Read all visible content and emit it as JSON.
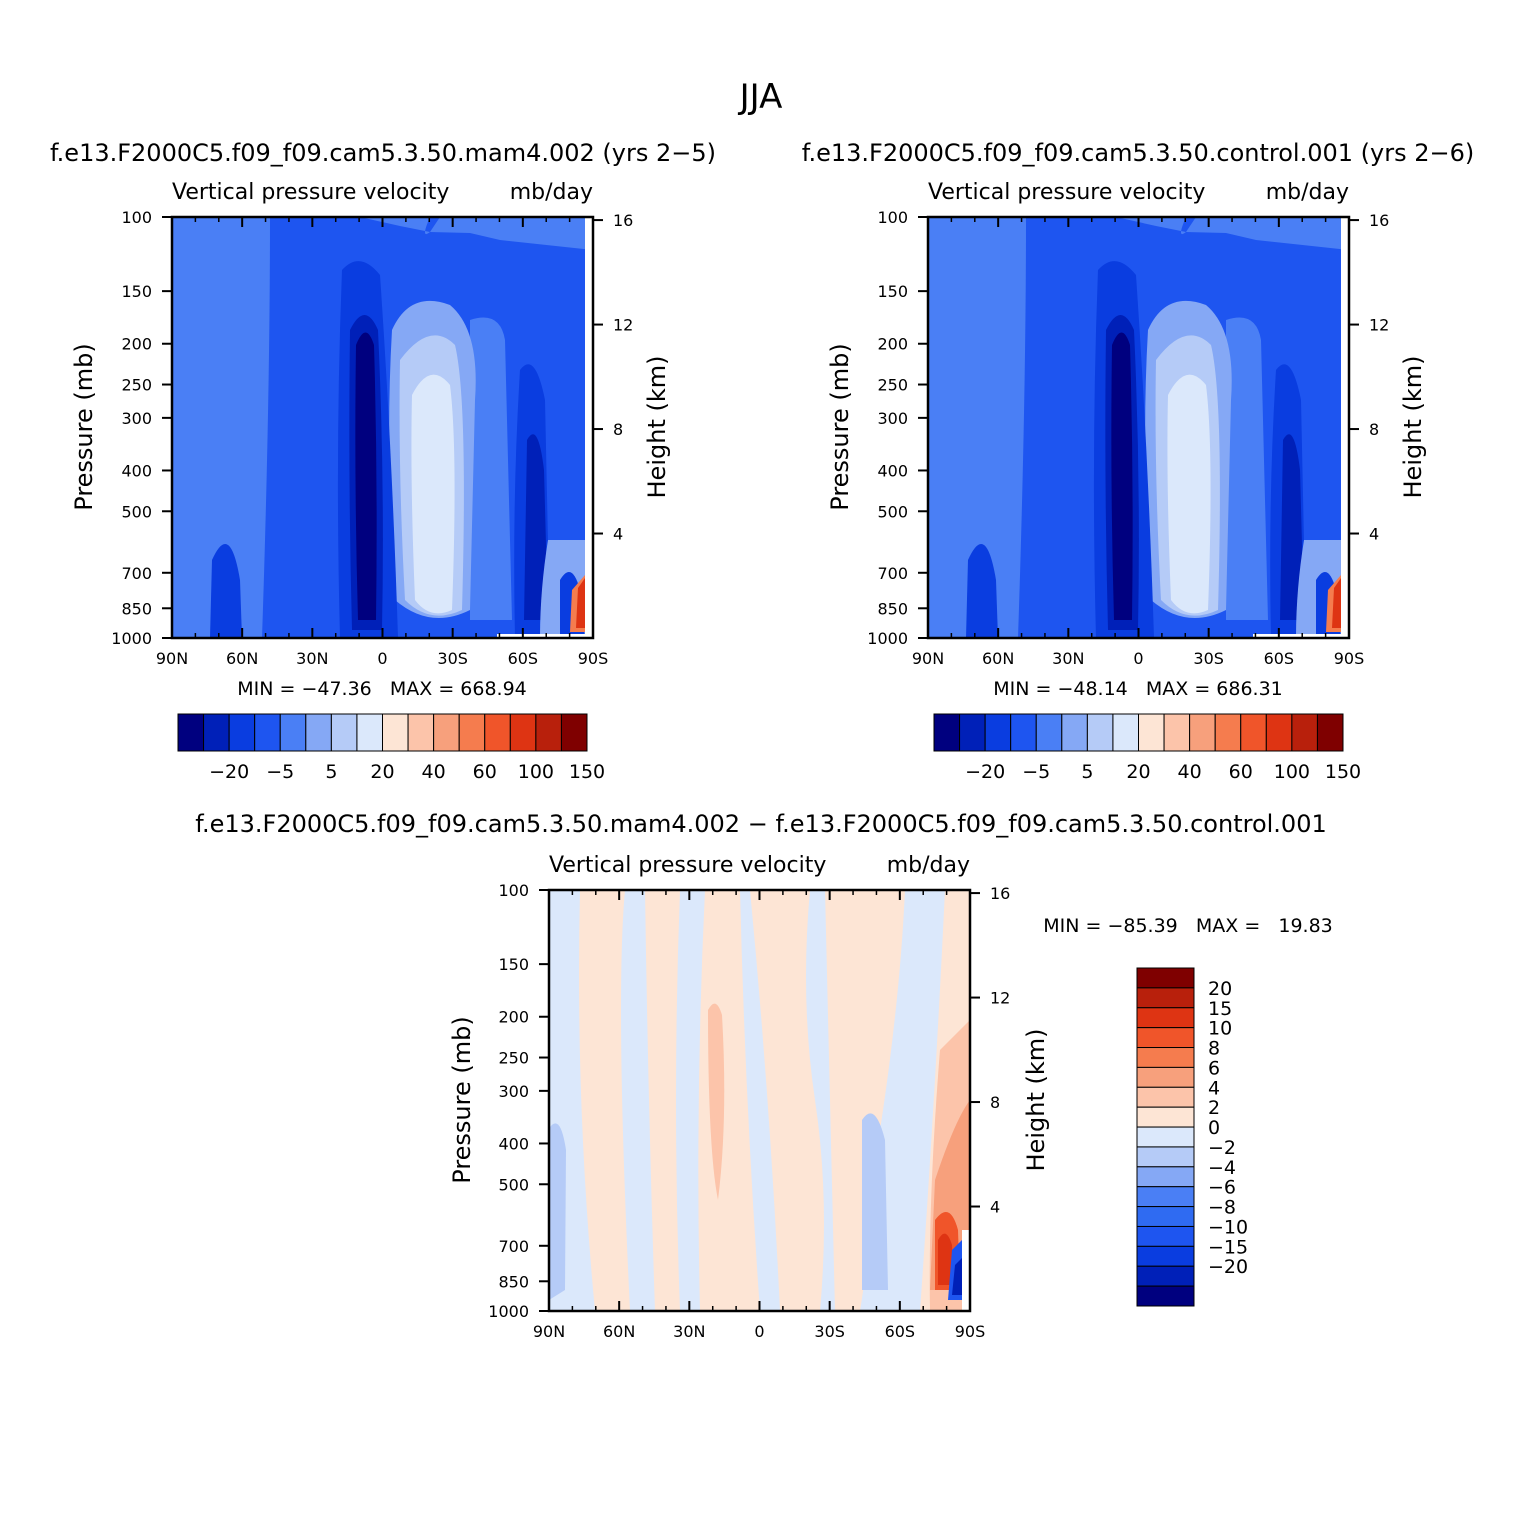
{
  "figure": {
    "title": "JJA"
  },
  "colors": {
    "abs_levels": [
      "#00007f",
      "#0020b8",
      "#0a3de0",
      "#1e55f0",
      "#4a7ff5",
      "#85a8f5",
      "#b5cbf7",
      "#dbe8fb",
      "#fde5d5",
      "#fcc4aa",
      "#f7a07c",
      "#f57c4e",
      "#f0552a",
      "#de3413",
      "#b8200c",
      "#7f0000"
    ],
    "diff_levels": [
      "#00007f",
      "#0020b8",
      "#0a3de0",
      "#1e55f0",
      "#2f6bf2",
      "#4a7ff5",
      "#85a8f5",
      "#b5cbf7",
      "#dbe8fb",
      "#fde5d5",
      "#fcc4aa",
      "#f7a07c",
      "#f57c4e",
      "#f0552a",
      "#de3413",
      "#b8200c",
      "#7f0000"
    ]
  },
  "chart_data": [
    {
      "type": "heatmap",
      "title": "f.e13.F2000C5.f09_f09.cam5.3.50.mam4.002 (yrs 2−5)",
      "subtitle_left": "Vertical pressure velocity",
      "subtitle_right": "mb/day",
      "xlabel": "",
      "ylabel": "Pressure (mb)",
      "ylabel_right": "Height (km)",
      "x_ticks": [
        "90N",
        "60N",
        "30N",
        "0",
        "30S",
        "60S",
        "90S"
      ],
      "y_ticks": [
        "100",
        "150",
        "200",
        "250",
        "300",
        "400",
        "500",
        "700",
        "850",
        "1000"
      ],
      "y_ticks_right": [
        "16",
        "12",
        "8",
        "4"
      ],
      "stats": "MIN = −47.36   MAX = 668.94",
      "colorbar_labels": [
        "−20",
        "−5",
        "5",
        "20",
        "40",
        "60",
        "100",
        "150"
      ]
    },
    {
      "type": "heatmap",
      "title": "f.e13.F2000C5.f09_f09.cam5.3.50.control.001 (yrs 2−6)",
      "subtitle_left": "Vertical pressure velocity",
      "subtitle_right": "mb/day",
      "xlabel": "",
      "ylabel": "Pressure (mb)",
      "ylabel_right": "Height (km)",
      "x_ticks": [
        "90N",
        "60N",
        "30N",
        "0",
        "30S",
        "60S",
        "90S"
      ],
      "y_ticks": [
        "100",
        "150",
        "200",
        "250",
        "300",
        "400",
        "500",
        "700",
        "850",
        "1000"
      ],
      "y_ticks_right": [
        "16",
        "12",
        "8",
        "4"
      ],
      "stats": "MIN = −48.14   MAX = 686.31",
      "colorbar_labels": [
        "−20",
        "−5",
        "5",
        "20",
        "40",
        "60",
        "100",
        "150"
      ]
    },
    {
      "type": "heatmap",
      "title": "f.e13.F2000C5.f09_f09.cam5.3.50.mam4.002 − f.e13.F2000C5.f09_f09.cam5.3.50.control.001",
      "subtitle_left": "Vertical pressure velocity",
      "subtitle_right": "mb/day",
      "xlabel": "",
      "ylabel": "Pressure (mb)",
      "ylabel_right": "Height (km)",
      "x_ticks": [
        "90N",
        "60N",
        "30N",
        "0",
        "30S",
        "60S",
        "90S"
      ],
      "y_ticks": [
        "100",
        "150",
        "200",
        "250",
        "300",
        "400",
        "500",
        "700",
        "850",
        "1000"
      ],
      "y_ticks_right": [
        "16",
        "12",
        "8",
        "4"
      ],
      "stats": "MIN = −85.39   MAX =   19.83",
      "colorbar_labels": [
        "20",
        "15",
        "10",
        "8",
        "6",
        "4",
        "2",
        "0",
        "−2",
        "−4",
        "−6",
        "−8",
        "−10",
        "−15",
        "−20"
      ]
    }
  ]
}
